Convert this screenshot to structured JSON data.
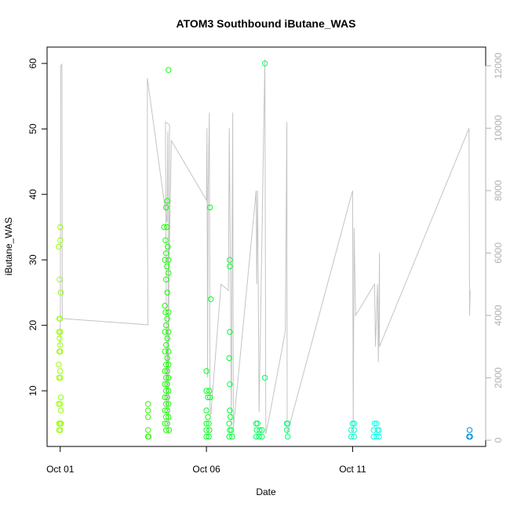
{
  "chart_data": {
    "type": "scatter",
    "title": "ATOM3 Southbound iButane_WAS",
    "xlabel": "Date",
    "ylabel": "iButane_WAS",
    "x_ticks": [
      "Oct 01",
      "Oct 06",
      "Oct 11"
    ],
    "x_tick_days": [
      1,
      6,
      11
    ],
    "xlim_days": [
      0.55,
      15.55
    ],
    "ylim": [
      1.5,
      62.5
    ],
    "y_ticks": [
      10,
      20,
      30,
      40,
      50,
      60
    ],
    "y2_ticks": [
      0,
      2000,
      4000,
      6000,
      8000,
      10000,
      12000
    ],
    "y2lim": [
      -200,
      12600
    ],
    "grid": false,
    "points": [
      [
        1.0,
        35
      ],
      [
        1.0,
        33
      ],
      [
        0.95,
        32
      ],
      [
        0.98,
        27
      ],
      [
        1.02,
        25
      ],
      [
        0.97,
        21
      ],
      [
        0.99,
        21
      ],
      [
        0.96,
        19
      ],
      [
        1.0,
        19
      ],
      [
        0.98,
        18
      ],
      [
        1.0,
        17
      ],
      [
        0.97,
        16
      ],
      [
        1.0,
        16
      ],
      [
        0.95,
        14
      ],
      [
        1.0,
        13
      ],
      [
        0.96,
        12
      ],
      [
        1.0,
        12
      ],
      [
        1.02,
        9
      ],
      [
        0.95,
        8
      ],
      [
        1.0,
        8
      ],
      [
        1.02,
        7
      ],
      [
        0.96,
        5
      ],
      [
        1.0,
        5
      ],
      [
        1.03,
        5
      ],
      [
        0.96,
        4
      ],
      [
        1.0,
        4
      ],
      [
        4.0,
        8
      ],
      [
        4.0,
        7
      ],
      [
        4.0,
        6
      ],
      [
        4.0,
        4
      ],
      [
        4.0,
        3
      ],
      [
        4.02,
        3
      ],
      [
        4.7,
        59
      ],
      [
        4.62,
        38
      ],
      [
        4.66,
        39
      ],
      [
        4.55,
        35
      ],
      [
        4.65,
        35
      ],
      [
        4.6,
        33
      ],
      [
        4.68,
        32
      ],
      [
        4.62,
        31
      ],
      [
        4.7,
        30
      ],
      [
        4.58,
        30
      ],
      [
        4.65,
        29
      ],
      [
        4.7,
        28
      ],
      [
        4.62,
        27
      ],
      [
        4.66,
        25
      ],
      [
        4.58,
        23
      ],
      [
        4.7,
        22
      ],
      [
        4.6,
        22
      ],
      [
        4.66,
        21
      ],
      [
        4.62,
        20
      ],
      [
        4.7,
        19
      ],
      [
        4.58,
        19
      ],
      [
        4.66,
        18
      ],
      [
        4.62,
        17
      ],
      [
        4.7,
        16
      ],
      [
        4.58,
        16
      ],
      [
        4.66,
        15
      ],
      [
        4.62,
        14
      ],
      [
        4.7,
        14
      ],
      [
        4.58,
        13
      ],
      [
        4.66,
        13
      ],
      [
        4.62,
        12
      ],
      [
        4.7,
        12
      ],
      [
        4.58,
        11
      ],
      [
        4.66,
        11
      ],
      [
        4.62,
        10
      ],
      [
        4.7,
        10
      ],
      [
        4.58,
        9
      ],
      [
        4.66,
        9
      ],
      [
        4.62,
        8
      ],
      [
        4.7,
        8
      ],
      [
        4.58,
        7
      ],
      [
        4.66,
        7
      ],
      [
        4.62,
        6
      ],
      [
        4.7,
        6
      ],
      [
        4.58,
        5
      ],
      [
        4.66,
        5
      ],
      [
        4.62,
        4
      ],
      [
        4.72,
        4
      ],
      [
        6.12,
        38
      ],
      [
        6.15,
        24
      ],
      [
        6.0,
        13
      ],
      [
        6.0,
        10
      ],
      [
        6.1,
        10
      ],
      [
        6.05,
        9
      ],
      [
        6.12,
        9
      ],
      [
        6.0,
        7
      ],
      [
        6.05,
        6
      ],
      [
        6.0,
        5
      ],
      [
        6.08,
        5
      ],
      [
        6.0,
        4
      ],
      [
        6.1,
        4
      ],
      [
        6.0,
        3
      ],
      [
        6.08,
        3
      ],
      [
        6.8,
        30
      ],
      [
        6.8,
        29
      ],
      [
        6.8,
        19
      ],
      [
        6.78,
        15
      ],
      [
        6.8,
        11
      ],
      [
        6.8,
        7
      ],
      [
        6.82,
        6
      ],
      [
        6.78,
        5
      ],
      [
        6.8,
        4
      ],
      [
        6.85,
        4
      ],
      [
        6.78,
        3
      ],
      [
        6.88,
        3
      ],
      [
        8.0,
        60
      ],
      [
        8.0,
        12
      ],
      [
        7.7,
        5
      ],
      [
        7.75,
        5
      ],
      [
        7.72,
        4
      ],
      [
        7.82,
        4
      ],
      [
        7.9,
        4
      ],
      [
        7.7,
        3
      ],
      [
        7.8,
        3
      ],
      [
        7.9,
        3
      ],
      [
        8.75,
        5
      ],
      [
        8.78,
        5
      ],
      [
        8.75,
        4
      ],
      [
        8.78,
        3
      ],
      [
        11.0,
        5
      ],
      [
        11.05,
        5
      ],
      [
        10.95,
        4
      ],
      [
        11.05,
        4
      ],
      [
        10.95,
        3
      ],
      [
        11.05,
        3
      ],
      [
        11.75,
        5
      ],
      [
        11.82,
        5
      ],
      [
        11.72,
        4
      ],
      [
        11.85,
        4
      ],
      [
        11.9,
        4
      ],
      [
        11.72,
        3
      ],
      [
        11.82,
        3
      ],
      [
        11.9,
        3
      ],
      [
        15.0,
        4
      ],
      [
        14.98,
        3
      ],
      [
        15.02,
        3
      ]
    ],
    "line": [
      [
        1.0,
        3000
      ],
      [
        1.02,
        12000
      ],
      [
        1.06,
        12050
      ],
      [
        1.07,
        3900
      ],
      [
        4.0,
        3700
      ],
      [
        3.98,
        7300
      ],
      [
        3.98,
        11600
      ],
      [
        4.65,
        7000
      ],
      [
        4.68,
        9900
      ],
      [
        4.7,
        200
      ],
      [
        4.72,
        6200
      ],
      [
        4.74,
        10100
      ],
      [
        4.6,
        10200
      ],
      [
        4.64,
        1000
      ],
      [
        4.7,
        4500
      ],
      [
        4.78,
        8600
      ],
      [
        4.8,
        9600
      ],
      [
        6.0,
        7700
      ],
      [
        6.02,
        10000
      ],
      [
        6.04,
        2000
      ],
      [
        6.06,
        8000
      ],
      [
        6.1,
        10500
      ],
      [
        6.12,
        1200
      ],
      [
        6.15,
        800
      ],
      [
        6.5,
        5000
      ],
      [
        6.75,
        4800
      ],
      [
        6.78,
        10000
      ],
      [
        6.82,
        5500
      ],
      [
        6.85,
        500
      ],
      [
        6.9,
        10500
      ],
      [
        6.92,
        400
      ],
      [
        7.7,
        8000
      ],
      [
        7.72,
        5000
      ],
      [
        7.75,
        8000
      ],
      [
        7.8,
        900
      ],
      [
        8.0,
        12200
      ],
      [
        8.03,
        200
      ],
      [
        8.2,
        1000
      ],
      [
        8.7,
        3500
      ],
      [
        8.75,
        10200
      ],
      [
        8.76,
        200
      ],
      [
        11.0,
        8000
      ],
      [
        11.02,
        300
      ],
      [
        11.05,
        6800
      ],
      [
        11.1,
        4000
      ],
      [
        11.75,
        5000
      ],
      [
        11.78,
        3000
      ],
      [
        11.85,
        5000
      ],
      [
        11.88,
        2500
      ],
      [
        11.92,
        6000
      ],
      [
        11.92,
        3000
      ],
      [
        14.98,
        10000
      ],
      [
        15.0,
        4000
      ],
      [
        15.02,
        4800
      ]
    ]
  }
}
